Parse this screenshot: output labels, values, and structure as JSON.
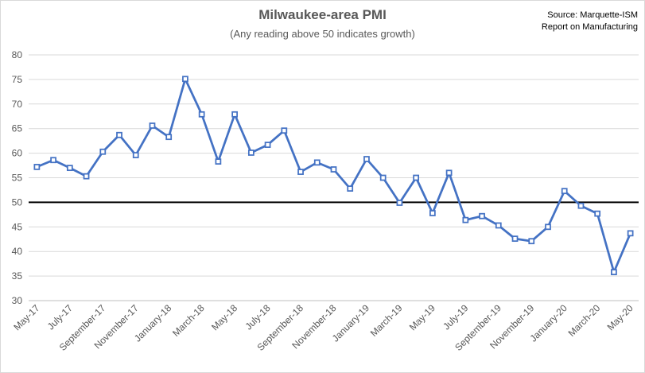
{
  "chart_data": {
    "type": "line",
    "title": "Milwaukee-area PMI",
    "subtitle": "(Any reading above 50 indicates growth)",
    "source_lines": [
      "Source: Marquette-ISM",
      "Report on Manufacturing"
    ],
    "xlabel": "",
    "ylabel": "",
    "ylim": [
      30,
      80
    ],
    "yticks": [
      30,
      35,
      40,
      45,
      50,
      55,
      60,
      65,
      70,
      75,
      80
    ],
    "reference_line": 50,
    "grid": true,
    "legend": "none",
    "x": [
      "May-17",
      "Jun-17",
      "Jul-17",
      "Aug-17",
      "Sep-17",
      "Oct-17",
      "Nov-17",
      "Dec-17",
      "Jan-18",
      "Feb-18",
      "Mar-18",
      "Apr-18",
      "May-18",
      "Jun-18",
      "Jul-18",
      "Aug-18",
      "Sep-18",
      "Oct-18",
      "Nov-18",
      "Dec-18",
      "Jan-19",
      "Feb-19",
      "Mar-19",
      "Apr-19",
      "May-19",
      "Jun-19",
      "Jul-19",
      "Aug-19",
      "Sep-19",
      "Oct-19",
      "Nov-19",
      "Dec-19",
      "Jan-20",
      "Feb-20",
      "Mar-20",
      "Apr-20",
      "May-20"
    ],
    "xtick_labels": [
      "May-17",
      "July-17",
      "September-17",
      "November-17",
      "January-18",
      "March-18",
      "May-18",
      "July-18",
      "September-18",
      "November-18",
      "January-19",
      "March-19",
      "May-19",
      "July-19",
      "September-19",
      "November-19",
      "January-20",
      "March-20",
      "May-20"
    ],
    "series": [
      {
        "values": [
          57.2,
          58.6,
          57.0,
          55.3,
          60.3,
          63.7,
          59.6,
          65.6,
          63.3,
          75.1,
          67.9,
          58.3,
          67.9,
          60.1,
          61.7,
          64.6,
          56.2,
          58.1,
          56.7,
          52.8,
          58.8,
          55.0,
          49.9,
          55.0,
          47.8,
          56.0,
          46.4,
          47.2,
          45.3,
          42.6,
          42.1,
          45.0,
          52.3,
          49.3,
          47.7,
          35.8,
          43.7
        ],
        "color": "#4472c4"
      }
    ]
  }
}
